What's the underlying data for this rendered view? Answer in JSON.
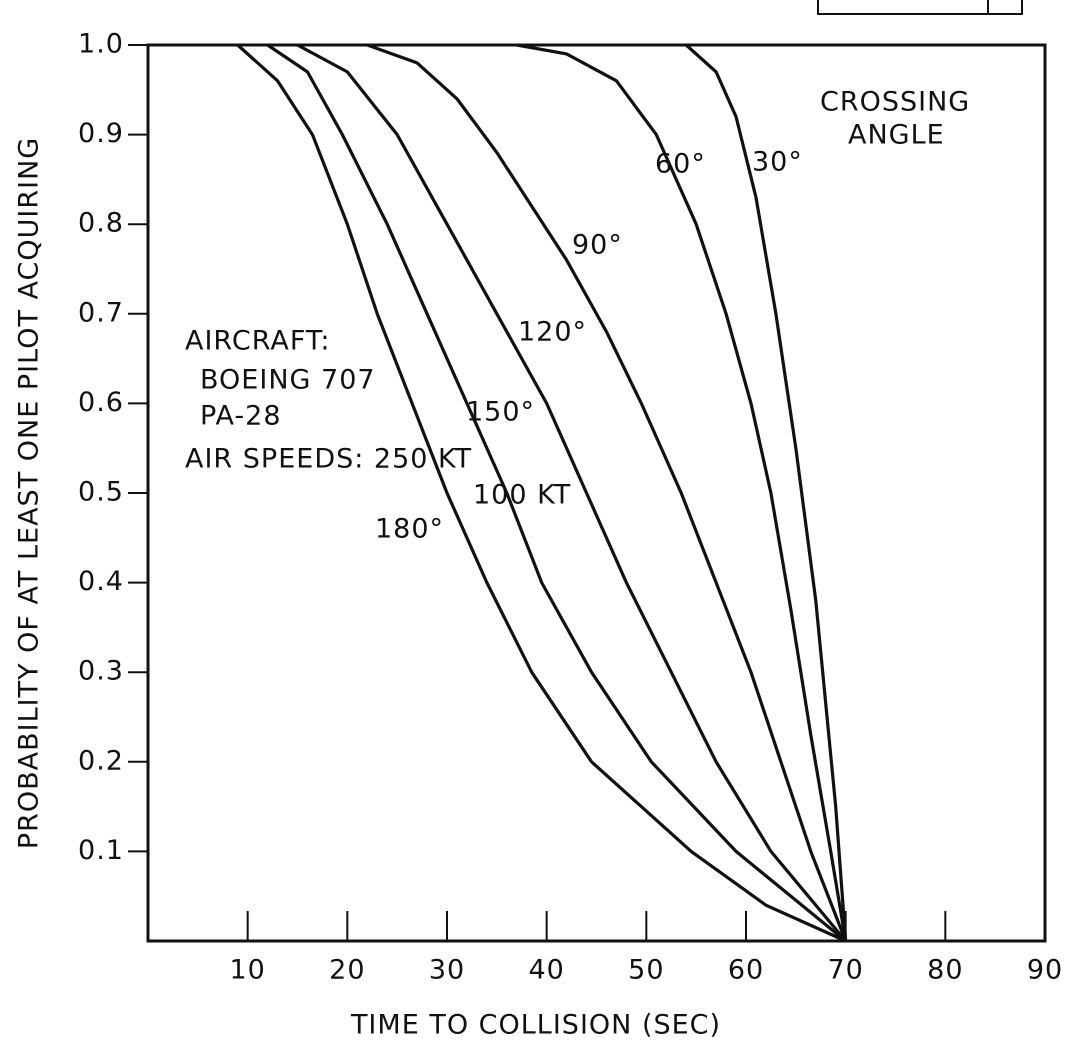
{
  "chart_data": {
    "type": "line",
    "x_label": "TIME TO COLLISION (SEC)",
    "y_label": "PROBABILITY OF AT LEAST ONE PILOT ACQUIRING",
    "xlim": [
      0,
      90
    ],
    "ylim": [
      0,
      1
    ],
    "xticks": [
      10,
      20,
      30,
      40,
      50,
      60,
      70,
      80,
      90
    ],
    "yticks": [
      0.1,
      0.2,
      0.3,
      0.4,
      0.5,
      0.6,
      0.7,
      0.8,
      0.9,
      {
        "value": 1,
        "label": "1.0"
      }
    ],
    "legend_title": [
      "CROSSING",
      "ANGLE"
    ],
    "annotations": [
      "AIRCRAFT:",
      "BOEING 707",
      "PA-28",
      "AIR  SPEEDS: 250 KT",
      "100 KT"
    ],
    "color": "#111111",
    "series": [
      {
        "name": "30°",
        "x": [
          54,
          57,
          59,
          61,
          63,
          65,
          67,
          69,
          70
        ],
        "values": [
          1,
          0.97,
          0.92,
          0.83,
          0.7,
          0.55,
          0.38,
          0.15,
          0
        ]
      },
      {
        "name": "60°",
        "x": [
          37,
          42,
          47,
          51,
          55,
          58,
          60.5,
          62.5,
          64.5,
          66.5,
          68.5,
          70
        ],
        "values": [
          1,
          0.99,
          0.96,
          0.9,
          0.8,
          0.7,
          0.6,
          0.5,
          0.37,
          0.23,
          0.1,
          0
        ]
      },
      {
        "name": "90°",
        "x": [
          22,
          27,
          31,
          35,
          38.5,
          42,
          46,
          49.5,
          53.5,
          57,
          60.5,
          63.5,
          66.5,
          70
        ],
        "values": [
          1,
          0.98,
          0.94,
          0.88,
          0.82,
          0.76,
          0.68,
          0.6,
          0.5,
          0.4,
          0.3,
          0.2,
          0.1,
          0
        ]
      },
      {
        "name": "120°",
        "x": [
          15,
          20,
          25,
          30,
          35,
          40,
          44,
          48,
          52.5,
          57,
          62.5,
          70
        ],
        "values": [
          1,
          0.97,
          0.9,
          0.8,
          0.7,
          0.6,
          0.5,
          0.4,
          0.3,
          0.2,
          0.1,
          0
        ]
      },
      {
        "name": "150°",
        "x": [
          12,
          16,
          19.5,
          24,
          28,
          32,
          36,
          39.5,
          44.5,
          50.5,
          59,
          70
        ],
        "values": [
          1,
          0.97,
          0.9,
          0.8,
          0.7,
          0.6,
          0.5,
          0.4,
          0.3,
          0.2,
          0.1,
          0
        ]
      },
      {
        "name": "180°",
        "x": [
          9,
          13,
          16.5,
          20,
          23,
          26.5,
          30,
          34,
          38.5,
          44.5,
          54.5,
          62,
          70
        ],
        "values": [
          1,
          0.96,
          0.9,
          0.8,
          0.7,
          0.6,
          0.5,
          0.4,
          0.3,
          0.2,
          0.1,
          0.04,
          0
        ]
      }
    ]
  }
}
